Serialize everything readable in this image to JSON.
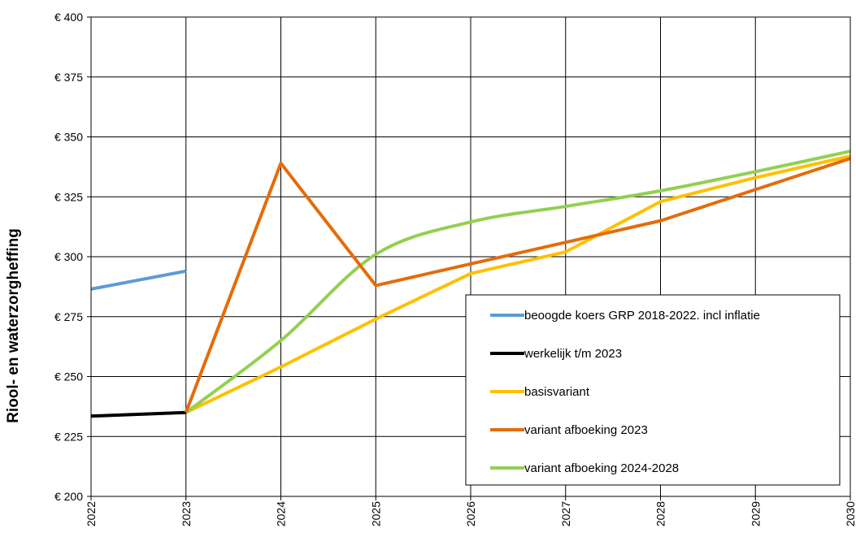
{
  "chart_data": {
    "type": "line",
    "title": "",
    "xlabel": "",
    "ylabel": "Riool- en waterzorgheffing",
    "x": [
      "2022",
      "2023",
      "2024",
      "2025",
      "2026",
      "2027",
      "2028",
      "2029",
      "2030"
    ],
    "ylim": [
      200,
      400
    ],
    "y_ticks": [
      200,
      225,
      250,
      275,
      300,
      325,
      350,
      375,
      400
    ],
    "y_tick_labels": [
      "€ 200",
      "€ 225",
      "€ 250",
      "€ 275",
      "€ 300",
      "€ 325",
      "€ 350",
      "€ 375",
      "€ 400"
    ],
    "grid": true,
    "legend_position": "bottom-right",
    "series": [
      {
        "name": "beoogde koers GRP 2018-2022. incl inflatie",
        "color": "#5B9BD5",
        "smooth": false,
        "points": [
          [
            2022,
            286.5
          ],
          [
            2023,
            294
          ]
        ]
      },
      {
        "name": "werkelijk t/m 2023",
        "color": "#000000",
        "smooth": false,
        "points": [
          [
            2022,
            233.5
          ],
          [
            2023,
            235
          ]
        ]
      },
      {
        "name": "basisvariant",
        "color": "#FFC000",
        "smooth": false,
        "points": [
          [
            2023,
            235
          ],
          [
            2024,
            254
          ],
          [
            2025,
            274
          ],
          [
            2026,
            293
          ],
          [
            2027,
            302
          ],
          [
            2028,
            323
          ],
          [
            2029,
            333
          ],
          [
            2030,
            342
          ]
        ]
      },
      {
        "name": "variant afboeking 2023",
        "color": "#E46C0A",
        "smooth": false,
        "points": [
          [
            2023,
            235
          ],
          [
            2024,
            339
          ],
          [
            2025,
            288
          ],
          [
            2026,
            297
          ],
          [
            2027,
            306
          ],
          [
            2028,
            315
          ],
          [
            2029,
            328
          ],
          [
            2030,
            341
          ]
        ]
      },
      {
        "name": "variant afboeking 2024-2028",
        "color": "#92D050",
        "smooth": true,
        "points": [
          [
            2023,
            235
          ],
          [
            2024,
            265
          ],
          [
            2025,
            301
          ],
          [
            2026,
            314.5
          ],
          [
            2027,
            321
          ],
          [
            2028,
            327.5
          ],
          [
            2029,
            335.5
          ],
          [
            2030,
            344
          ]
        ]
      }
    ]
  }
}
